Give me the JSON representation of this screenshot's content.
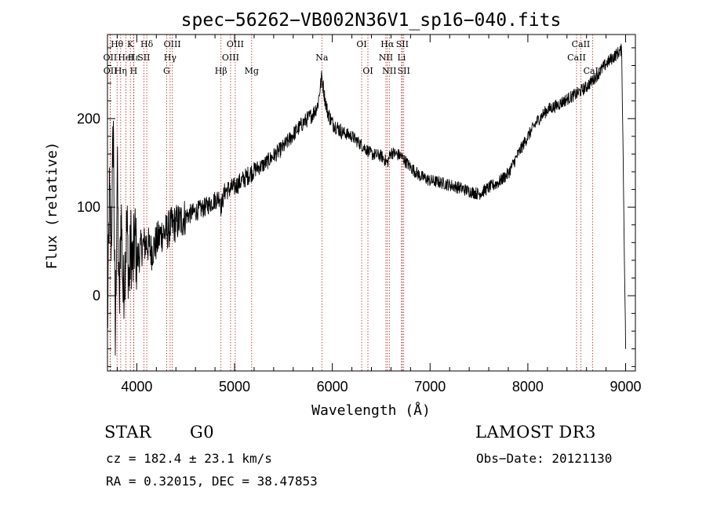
{
  "chart_data": {
    "type": "line",
    "title": "spec−56262−VB002N36V1_sp16−040.fits",
    "xlabel": "Wavelength (Å)",
    "ylabel": "Flux (relative)",
    "xlim": [
      3700,
      9100
    ],
    "ylim": [
      -85,
      295
    ],
    "xticks": [
      4000,
      5000,
      6000,
      7000,
      8000,
      9000
    ],
    "yticks": [
      0,
      100,
      200
    ],
    "series": [
      {
        "name": "spectrum",
        "x": [
          3700,
          3720,
          3740,
          3760,
          3780,
          3800,
          3820,
          3840,
          3860,
          3880,
          3900,
          3920,
          3940,
          3960,
          3980,
          4000,
          4050,
          4100,
          4150,
          4200,
          4250,
          4300,
          4350,
          4400,
          4450,
          4500,
          4600,
          4700,
          4800,
          4850,
          4861,
          4900,
          5000,
          5100,
          5200,
          5300,
          5400,
          5500,
          5600,
          5700,
          5800,
          5850,
          5893,
          5920,
          5950,
          6000,
          6100,
          6200,
          6300,
          6400,
          6500,
          6563,
          6600,
          6700,
          6800,
          6900,
          7000,
          7100,
          7200,
          7300,
          7400,
          7500,
          7600,
          7700,
          7800,
          7900,
          8000,
          8100,
          8200,
          8300,
          8400,
          8500,
          8600,
          8700,
          8800,
          8900,
          8960,
          9000
        ],
        "y": [
          -40,
          110,
          60,
          200,
          -60,
          150,
          -20,
          100,
          0,
          40,
          80,
          10,
          60,
          30,
          70,
          40,
          55,
          60,
          50,
          60,
          70,
          72,
          78,
          82,
          85,
          90,
          95,
          100,
          108,
          112,
          100,
          118,
          123,
          132,
          142,
          148,
          158,
          168,
          182,
          195,
          205,
          215,
          248,
          225,
          208,
          195,
          185,
          180,
          170,
          160,
          158,
          150,
          162,
          158,
          145,
          135,
          130,
          128,
          125,
          122,
          118,
          115,
          122,
          128,
          138,
          160,
          180,
          198,
          210,
          215,
          222,
          228,
          236,
          248,
          262,
          272,
          278,
          -60
        ]
      }
    ],
    "line_labels": [
      {
        "label": "Hθ",
        "wavelength": 3798,
        "row": 1
      },
      {
        "label": "OII",
        "wavelength": 3727,
        "row": 2
      },
      {
        "label": "OII",
        "wavelength": 3729,
        "row": 3
      },
      {
        "label": "Hη",
        "wavelength": 3835,
        "row": 3
      },
      {
        "label": "HeI",
        "wavelength": 3889,
        "row": 2
      },
      {
        "label": "K",
        "wavelength": 3934,
        "row": 1
      },
      {
        "label": "Hε",
        "wavelength": 3970,
        "row": 2
      },
      {
        "label": "H",
        "wavelength": 3968,
        "row": 3
      },
      {
        "label": "SII",
        "wavelength": 4072,
        "row": 2
      },
      {
        "label": "Hδ",
        "wavelength": 4102,
        "row": 1
      },
      {
        "label": "OIII",
        "wavelength": 4363,
        "row": 1
      },
      {
        "label": "Hγ",
        "wavelength": 4341,
        "row": 2
      },
      {
        "label": "G",
        "wavelength": 4305,
        "row": 3
      },
      {
        "label": "Hβ",
        "wavelength": 4861,
        "row": 3
      },
      {
        "label": "OIII",
        "wavelength": 5007,
        "row": 1
      },
      {
        "label": "OIII",
        "wavelength": 4959,
        "row": 2
      },
      {
        "label": "Mg",
        "wavelength": 5175,
        "row": 3
      },
      {
        "label": "Na",
        "wavelength": 5893,
        "row": 2
      },
      {
        "label": "OI",
        "wavelength": 6300,
        "row": 1
      },
      {
        "label": "OI",
        "wavelength": 6364,
        "row": 3
      },
      {
        "label": "Hα",
        "wavelength": 6563,
        "row": 1
      },
      {
        "label": "NII",
        "wavelength": 6548,
        "row": 2
      },
      {
        "label": "NII",
        "wavelength": 6583,
        "row": 3
      },
      {
        "label": "SII",
        "wavelength": 6716,
        "row": 1
      },
      {
        "label": "Li",
        "wavelength": 6708,
        "row": 2
      },
      {
        "label": "SII",
        "wavelength": 6731,
        "row": 3
      },
      {
        "label": "CaII",
        "wavelength": 8542,
        "row": 1
      },
      {
        "label": "CaII",
        "wavelength": 8498,
        "row": 2
      },
      {
        "label": "CaII",
        "wavelength": 8662,
        "row": 3
      }
    ]
  },
  "info": {
    "object_class": "STAR",
    "subclass": "G0",
    "survey": "LAMOST DR3",
    "redshift_line": "cz = 182.4 ± 23.1 km/s",
    "obs_date_line": "Obs−Date: 20121130",
    "coords_line": "RA =   0.32015, DEC =  38.47853"
  }
}
